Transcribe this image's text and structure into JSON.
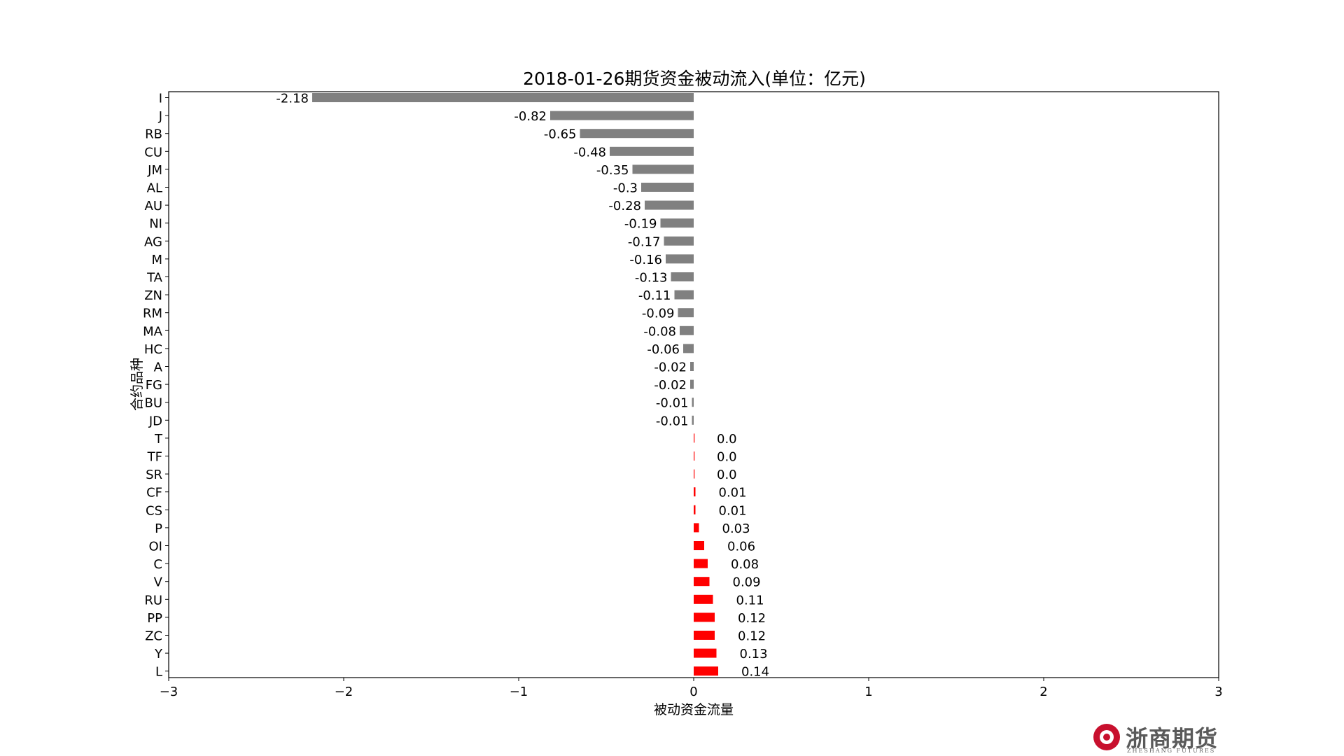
{
  "chart_data": {
    "type": "bar",
    "orientation": "horizontal",
    "title": "2018-01-26期货资金被动流入(单位：亿元)",
    "xlabel": "被动资金流量",
    "ylabel": "合约品种",
    "xlim": [
      -3,
      3
    ],
    "xticks": [
      -3,
      -2,
      -1,
      0,
      1,
      2,
      3
    ],
    "xtick_labels": [
      "−3",
      "−2",
      "−1",
      "0",
      "1",
      "2",
      "3"
    ],
    "grid": false,
    "negative_color": "#808080",
    "positive_color": "#ff0000",
    "categories": [
      "I",
      "J",
      "RB",
      "CU",
      "JM",
      "AL",
      "AU",
      "NI",
      "AG",
      "M",
      "TA",
      "ZN",
      "RM",
      "MA",
      "HC",
      "A",
      "FG",
      "BU",
      "JD",
      "T",
      "TF",
      "SR",
      "CF",
      "CS",
      "P",
      "OI",
      "C",
      "V",
      "RU",
      "PP",
      "ZC",
      "Y",
      "L"
    ],
    "values": [
      -2.18,
      -0.82,
      -0.65,
      -0.48,
      -0.35,
      -0.3,
      -0.28,
      -0.19,
      -0.17,
      -0.16,
      -0.13,
      -0.11,
      -0.09,
      -0.08,
      -0.06,
      -0.02,
      -0.02,
      -0.01,
      -0.01,
      0.0,
      0.0,
      0.0,
      0.01,
      0.01,
      0.03,
      0.06,
      0.08,
      0.09,
      0.11,
      0.12,
      0.12,
      0.13,
      0.14
    ],
    "value_labels": [
      "-2.18",
      "-0.82",
      "-0.65",
      "-0.48",
      "-0.35",
      "-0.3",
      "-0.28",
      "-0.19",
      "-0.17",
      "-0.16",
      "-0.13",
      "-0.11",
      "-0.09",
      "-0.08",
      "-0.06",
      "-0.02",
      "-0.02",
      "-0.01",
      "-0.01",
      "0.0",
      "0.0",
      "0.0",
      "0.01",
      "0.01",
      "0.03",
      "0.06",
      "0.08",
      "0.09",
      "0.11",
      "0.12",
      "0.12",
      "0.13",
      "0.14"
    ]
  },
  "logo": {
    "text": "浙商期货",
    "subtext": "ZHESHANG FUTURES"
  }
}
